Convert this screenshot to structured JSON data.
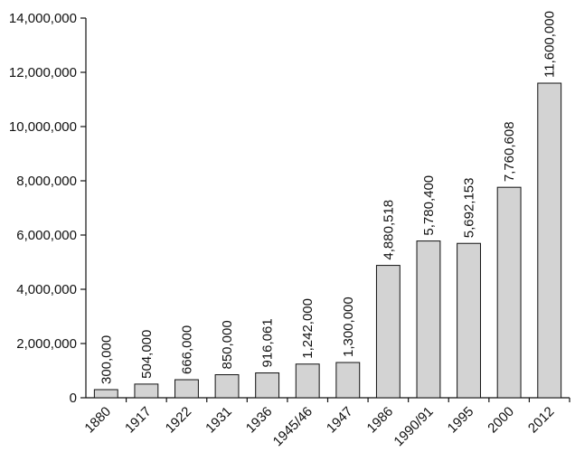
{
  "chart_data": {
    "type": "bar",
    "categories": [
      "1880",
      "1917",
      "1922",
      "1931",
      "1936",
      "1945/46",
      "1947",
      "1986",
      "1990/91",
      "1995",
      "2000",
      "2012"
    ],
    "values": [
      300000,
      504000,
      666000,
      850000,
      916061,
      1242000,
      1300000,
      4880518,
      5780400,
      5692153,
      7760608,
      11600000
    ],
    "data_labels": [
      "300,000",
      "504,000",
      "666,000",
      "850,000",
      "916,061",
      "1,242,000",
      "1,300,000",
      "4,880,518",
      "5,780,400",
      "5,692,153",
      "7,760,608",
      "11,600,000"
    ],
    "title": "",
    "xlabel": "",
    "ylabel": "",
    "ylim": [
      0,
      14000000
    ],
    "yticks": [
      0,
      2000000,
      4000000,
      6000000,
      8000000,
      10000000,
      12000000,
      14000000
    ],
    "ytick_labels": [
      "0",
      "2,000,000",
      "4,000,000",
      "6,000,000",
      "8,000,000",
      "10,000,000",
      "12,000,000",
      "14,000,000"
    ],
    "grid": false,
    "bar_color": "#d3d3d3",
    "edge_color": "#111111"
  }
}
